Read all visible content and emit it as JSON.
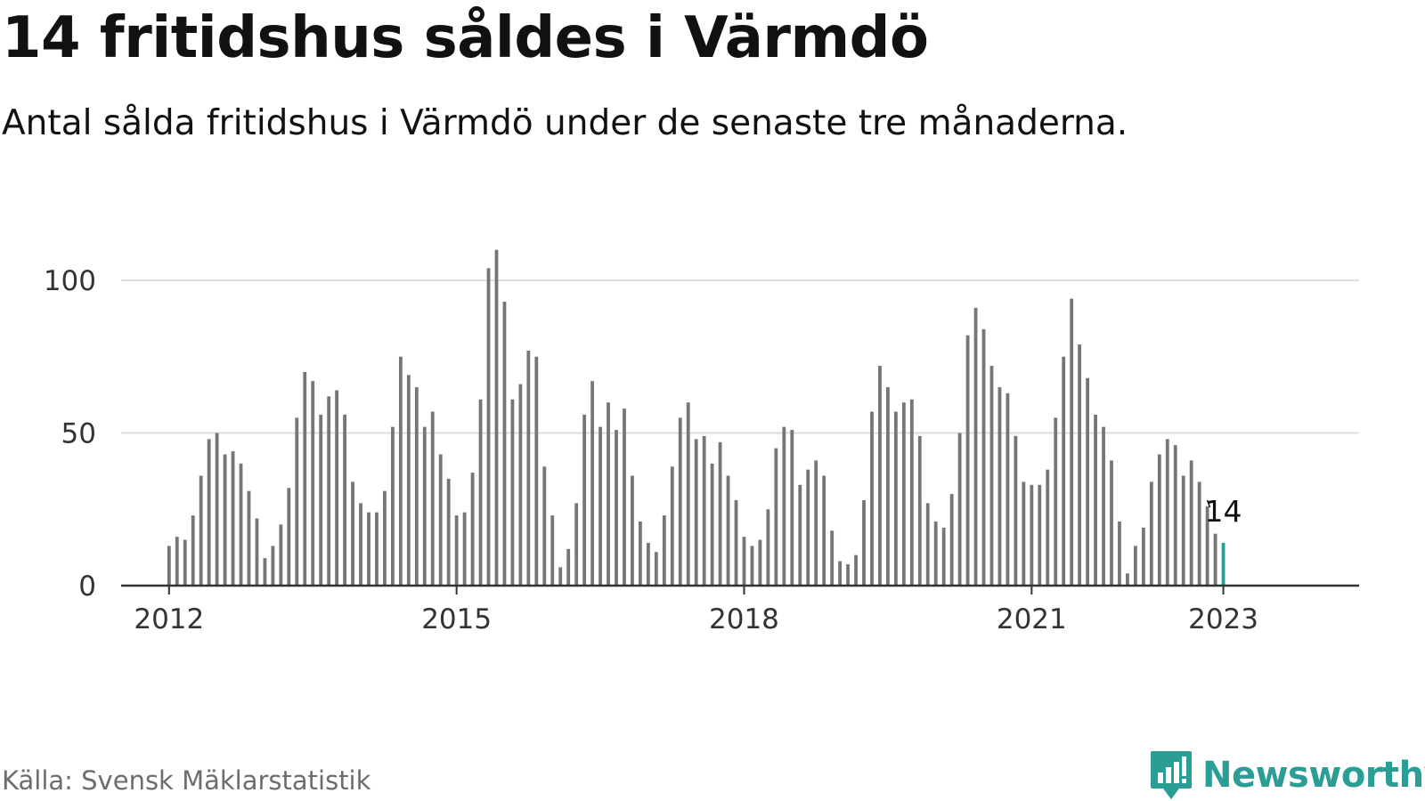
{
  "title": "14 fritidshus såldes i Värmdö",
  "subtitle": "Antal sålda fritidshus i Värmdö under de senaste tre månaderna.",
  "source": "Källa: Svensk Mäklarstatistik",
  "brand": {
    "name": "Newsworthy",
    "icon": "newsworthy-logo-icon"
  },
  "colors": {
    "bar": "#75757a",
    "highlight": "#2a9d94",
    "grid": "#dddddd",
    "axis": "#333333",
    "brand": "#2a9d94"
  },
  "chart_data": {
    "type": "bar",
    "title": "14 fritidshus såldes i Värmdö",
    "subtitle": "Antal sålda fritidshus i Värmdö under de senaste tre månaderna.",
    "xlabel": "",
    "ylabel": "",
    "ylim": [
      0,
      110
    ],
    "yticks": [
      0,
      50,
      100
    ],
    "xlim": [
      "2011-07",
      "2024-06"
    ],
    "xticks": [
      {
        "date": "2012-01",
        "label": "2012"
      },
      {
        "date": "2015-01",
        "label": "2015"
      },
      {
        "date": "2018-01",
        "label": "2018"
      },
      {
        "date": "2021-01",
        "label": "2021"
      },
      {
        "date": "2023-01",
        "label": "2023"
      }
    ],
    "grid": true,
    "start": "2012-01",
    "values": [
      13,
      16,
      15,
      23,
      36,
      48,
      50,
      43,
      44,
      40,
      31,
      22,
      9,
      13,
      20,
      32,
      55,
      70,
      67,
      56,
      62,
      64,
      56,
      34,
      27,
      24,
      24,
      31,
      52,
      75,
      69,
      65,
      52,
      57,
      43,
      35,
      23,
      24,
      37,
      61,
      104,
      110,
      93,
      61,
      66,
      77,
      75,
      39,
      23,
      6,
      12,
      27,
      56,
      67,
      52,
      60,
      51,
      58,
      36,
      21,
      14,
      11,
      23,
      39,
      55,
      60,
      48,
      49,
      40,
      47,
      36,
      28,
      16,
      13,
      15,
      25,
      45,
      52,
      51,
      33,
      38,
      41,
      36,
      18,
      8,
      7,
      10,
      28,
      57,
      72,
      65,
      57,
      60,
      61,
      49,
      27,
      21,
      19,
      30,
      50,
      82,
      91,
      84,
      72,
      65,
      63,
      49,
      34,
      33,
      33,
      38,
      55,
      75,
      94,
      79,
      68,
      56,
      52,
      41,
      21,
      4,
      13,
      19,
      34,
      43,
      48,
      46,
      36,
      41,
      34,
      26,
      17,
      14
    ],
    "highlight": {
      "date": "2023-01",
      "value": 14,
      "label": "14"
    }
  }
}
